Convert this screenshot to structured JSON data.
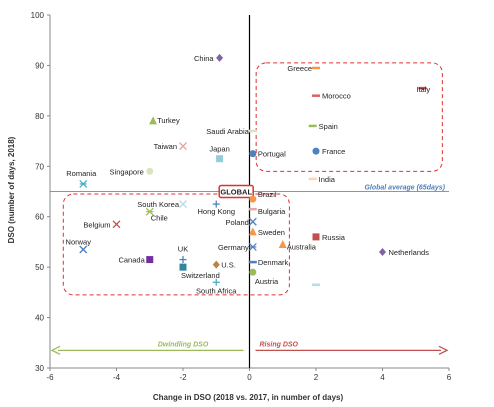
{
  "chart_data": {
    "type": "scatter",
    "xlabel": "Change in DSO (2018 vs. 2017, in number of days)",
    "ylabel": "DSO (number of days, 2018)",
    "xlim": [
      -6,
      6
    ],
    "ylim": [
      30,
      100
    ],
    "xticks": [
      -6,
      -4,
      -2,
      0,
      2,
      4,
      6
    ],
    "yticks": [
      30,
      40,
      50,
      60,
      70,
      80,
      90,
      100
    ],
    "global_average": {
      "y": 65,
      "label": "Global average (65days)",
      "color": "#4f81bd"
    },
    "global_box_label": "GLOBAL",
    "arrows": [
      {
        "label": "Dwindling DSO",
        "direction": "left",
        "color": "#9bbb59"
      },
      {
        "label": "Rising DSO",
        "direction": "right",
        "color": "#c0504d"
      }
    ],
    "points": [
      {
        "name": "China",
        "x": -0.9,
        "y": 91.5,
        "marker": "diamond",
        "color": "#8064a2"
      },
      {
        "name": "Greece",
        "x": 2,
        "y": 89.5,
        "marker": "dash",
        "color": "#f79646"
      },
      {
        "name": "Italy",
        "x": 5.2,
        "y": 85.5,
        "marker": "dash",
        "color": "#c0504d"
      },
      {
        "name": "Morocco",
        "x": 2,
        "y": 84,
        "marker": "dash",
        "color": "#e06060"
      },
      {
        "name": "Turkey",
        "x": -2.9,
        "y": 79,
        "marker": "triangle",
        "color": "#9bbb59"
      },
      {
        "name": "Spain",
        "x": 1.9,
        "y": 78,
        "marker": "dash",
        "color": "#9bbb59"
      },
      {
        "name": "Saudi Arabia",
        "x": 0.1,
        "y": 77,
        "marker": "dash",
        "color": "#d7e4bd"
      },
      {
        "name": "Taiwan",
        "x": -2,
        "y": 74,
        "marker": "x",
        "color": "#e6a6a6"
      },
      {
        "name": "France",
        "x": 2,
        "y": 73,
        "marker": "circle",
        "color": "#4f81bd"
      },
      {
        "name": "Portugal",
        "x": 0.1,
        "y": 72.5,
        "marker": "circle",
        "color": "#4f81bd"
      },
      {
        "name": "Japan",
        "x": -0.9,
        "y": 71.5,
        "marker": "square",
        "color": "#93cddd"
      },
      {
        "name": "Singapore",
        "x": -3,
        "y": 69,
        "marker": "circle",
        "color": "#d7e4bd"
      },
      {
        "name": "India",
        "x": 1.9,
        "y": 67.5,
        "marker": "dash",
        "color": "#fcd5b5"
      },
      {
        "name": "Romania",
        "x": -5,
        "y": 66.5,
        "marker": "star",
        "color": "#4bacc6"
      },
      {
        "name": "Brazil",
        "x": 0.1,
        "y": 63.5,
        "marker": "circle",
        "color": "#f79646"
      },
      {
        "name": "South Korea",
        "x": -2,
        "y": 62.5,
        "marker": "x",
        "color": "#b7dee8"
      },
      {
        "name": "Hong Kong",
        "x": -1,
        "y": 62.5,
        "marker": "plus",
        "color": "#4f81bd"
      },
      {
        "name": "Bulgaria",
        "x": 0.1,
        "y": 61.5,
        "marker": "dash",
        "color": "#e6a6a6"
      },
      {
        "name": "Chile",
        "x": -3,
        "y": 61,
        "marker": "star",
        "color": "#9bbb59"
      },
      {
        "name": "Poland",
        "x": 0.1,
        "y": 59,
        "marker": "x",
        "color": "#4f81bd"
      },
      {
        "name": "Belgium",
        "x": -4,
        "y": 58.5,
        "marker": "x",
        "color": "#c0504d"
      },
      {
        "name": "Sweden",
        "x": 0.1,
        "y": 57,
        "marker": "triangle",
        "color": "#f79646"
      },
      {
        "name": "Russia",
        "x": 2,
        "y": 56,
        "marker": "square",
        "color": "#c0504d"
      },
      {
        "name": "Norway",
        "x": -5,
        "y": 53.5,
        "marker": "x",
        "color": "#4f81bd"
      },
      {
        "name": "Germany",
        "x": 0.1,
        "y": 54,
        "marker": "star",
        "color": "#4f81bd"
      },
      {
        "name": "Australia",
        "x": 1,
        "y": 54.5,
        "marker": "triangle",
        "color": "#f79646"
      },
      {
        "name": "Netherlands",
        "x": 4,
        "y": 53,
        "marker": "diamond",
        "color": "#8064a2"
      },
      {
        "name": "Canada",
        "x": -3,
        "y": 51.5,
        "marker": "square",
        "color": "#7030a0"
      },
      {
        "name": "UK",
        "x": -2,
        "y": 51.5,
        "marker": "plus",
        "color": "#4f81bd"
      },
      {
        "name": "Denmark",
        "x": 0.1,
        "y": 51,
        "marker": "dash",
        "color": "#4f81bd"
      },
      {
        "name": "U.S.",
        "x": -1,
        "y": 50.5,
        "marker": "diamond",
        "color": "#c08040"
      },
      {
        "name": "Switzerland",
        "x": -2,
        "y": 50,
        "marker": "square",
        "color": "#31859c"
      },
      {
        "name": "Austria",
        "x": 0.1,
        "y": 49,
        "marker": "circle",
        "color": "#9bbb59"
      },
      {
        "name": "South Africa",
        "x": -1,
        "y": 47,
        "marker": "plus",
        "color": "#4bacc6"
      },
      {
        "name": "",
        "x": 2,
        "y": 46.5,
        "marker": "dash",
        "color": "#b7dee8"
      }
    ]
  }
}
